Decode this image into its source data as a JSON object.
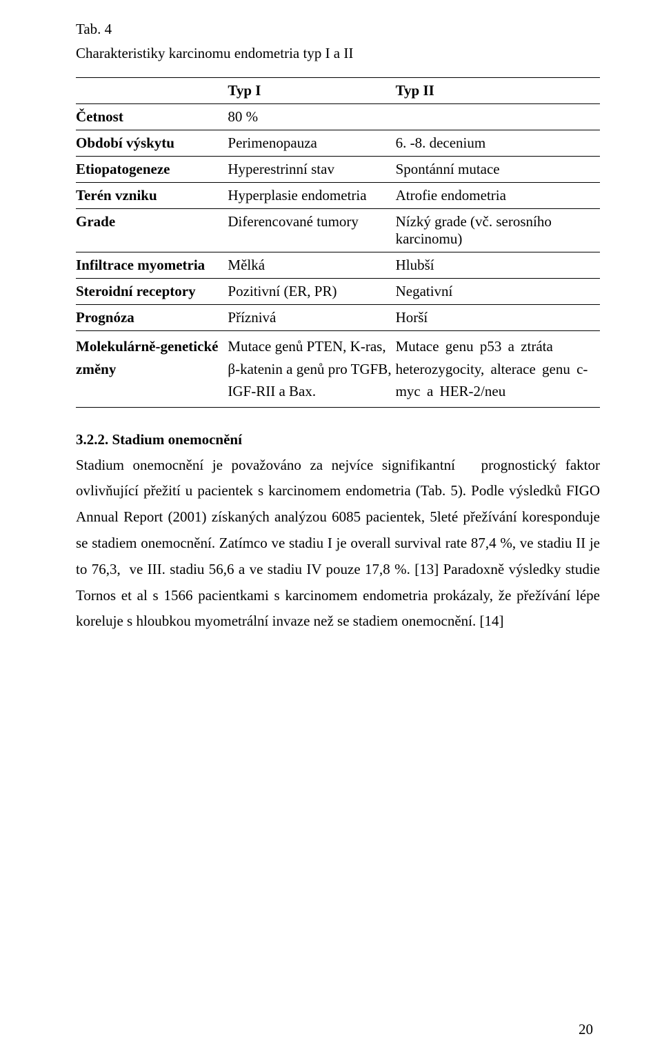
{
  "table_label": "Tab. 4",
  "table_title": "Charakteristiky karcinomu endometria typ I a II",
  "table": {
    "header": [
      "",
      "Typ I",
      "Typ II"
    ],
    "rows": [
      {
        "label": "Četnost",
        "c2": "80 %",
        "c3": ""
      },
      {
        "label": "Období výskytu",
        "c2": "Perimenopauza",
        "c3": "6. -8. decenium"
      },
      {
        "label": "Etiopatogeneze",
        "c2": "Hyperestrinní stav",
        "c3": "Spontánní mutace"
      },
      {
        "label": "Terén vzniku",
        "c2": "Hyperplasie endometria",
        "c3": "Atrofie endometria"
      },
      {
        "label": "Grade",
        "c2": "Diferencované tumory",
        "c3": "Nízký grade (vč. serosního karcinomu)"
      },
      {
        "label": "Infiltrace myometria",
        "c2": "Mělká",
        "c3": "Hlubší"
      },
      {
        "label": "Steroidní receptory",
        "c2": "Pozitivní (ER, PR)",
        "c3": "Negativní"
      },
      {
        "label": "Prognóza",
        "c2": "Příznivá",
        "c3": "Horší"
      },
      {
        "label": "Molekulárně-genetické změny",
        "c2": "Mutace genů PTEN, K-ras, β-katenin a genů pro TGFB, IGF-RII a Bax.",
        "c3": "Mutace genu p53 a ztráta heterozygocity, alterace genu c-myc a HER-2/neu"
      }
    ]
  },
  "section_heading": "3.2.2. Stadium onemocnění",
  "paragraph": "Stadium onemocnění je považováno za nejvíce signifikantní   prognostický faktor ovlivňující přežití u pacientek s karcinomem endometria (Tab. 5). Podle výsledků FIGO Annual Report (2001) získaných analýzou 6085 pacientek, 5leté přežívání koresponduje se stadiem onemocnění. Zatímco ve stadiu I je overall survival rate 87,4 %, ve stadiu II je to 76,3,  ve III. stadiu 56,6 a ve stadiu IV pouze 17,8 %. [13] Paradoxně výsledky studie Tornos et al s 1566 pacientkami s karcinomem endometria prokázaly, že přežívání lépe koreluje s hloubkou myometrální invaze než se stadiem onemocnění. [14]",
  "page_number": "20"
}
